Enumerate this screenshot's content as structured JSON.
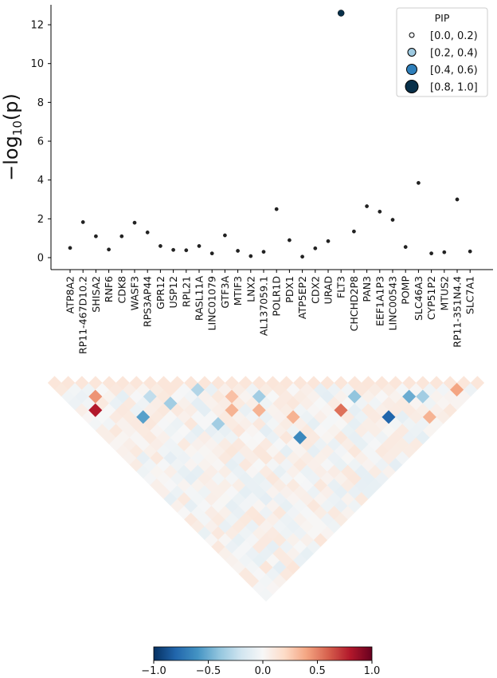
{
  "chart_data": [
    {
      "type": "scatter",
      "ylabel": "−log₁₀(p)",
      "ylim": [
        -0.6,
        13.0
      ],
      "yticks": [
        0,
        2,
        4,
        6,
        8,
        10,
        12
      ],
      "genes": [
        "ATP8A2",
        "RP11-467D10.2",
        "SHISA2",
        "RNF6",
        "CDK8",
        "WASF3",
        "RPS3AP44",
        "GPR12",
        "USP12",
        "RPL21",
        "RASL11A",
        "LINC01079",
        "GTF3A",
        "MTIF3",
        "LNX2",
        "AL137059.1",
        "POLR1D",
        "PDX1",
        "ATP5EP2",
        "CDX2",
        "URAD",
        "FLT3",
        "CHCHD2P8",
        "PAN3",
        "EEF1A1P3",
        "LINC00543",
        "POMP",
        "SLC46A3",
        "CYP51P2",
        "MTUS2",
        "RP11-351N4.4",
        "SLC7A1"
      ],
      "values": [
        0.5,
        1.83,
        1.1,
        0.42,
        1.1,
        1.8,
        1.3,
        0.6,
        0.4,
        0.38,
        0.6,
        0.22,
        1.15,
        0.35,
        0.08,
        0.3,
        2.5,
        0.9,
        0.05,
        0.48,
        0.85,
        12.6,
        1.35,
        2.65,
        2.37,
        1.95,
        0.55,
        3.85,
        0.22,
        0.28,
        3.0,
        0.32
      ],
      "pip_bins": [
        0,
        0,
        0,
        0,
        0,
        0,
        0,
        0,
        0,
        0,
        0,
        0,
        0,
        0,
        0,
        0,
        0,
        0,
        0,
        0,
        0,
        3,
        0,
        0,
        0,
        0,
        0,
        0,
        0,
        0,
        0,
        0
      ],
      "legend": {
        "title": "PIP",
        "placement": "top-right",
        "entries": [
          {
            "label": "[0.0, 0.2)",
            "color": "#f7fbff"
          },
          {
            "label": "[0.2, 0.4)",
            "color": "#9ecae1"
          },
          {
            "label": "[0.4, 0.6)",
            "color": "#2f7fba"
          },
          {
            "label": "[0.8, 1.0]",
            "color": "#08304a"
          }
        ]
      }
    },
    {
      "type": "heatmap",
      "shape": "lower-triangle LD matrix",
      "size": 32,
      "colormap": "RdBu_r",
      "clim": [
        -1.0,
        1.0
      ],
      "colorbar_ticks": [
        "−1.0",
        "−0.5",
        "0.0",
        "0.5",
        "1.0"
      ],
      "colorbar_values": [
        -1.0,
        -0.5,
        0.0,
        0.5,
        1.0
      ],
      "highlighted_cells": [
        {
          "i": 4,
          "j": 9,
          "r": -0.55
        },
        {
          "i": 2,
          "j": 4,
          "r": 0.45
        },
        {
          "i": 1,
          "j": 5,
          "r": 0.8
        },
        {
          "i": 7,
          "j": 10,
          "r": -0.35
        },
        {
          "i": 12,
          "j": 14,
          "r": 0.3
        },
        {
          "i": 11,
          "j": 15,
          "r": 0.35
        },
        {
          "i": 14,
          "j": 22,
          "r": -0.65
        },
        {
          "i": 25,
          "j": 27,
          "r": -0.5
        },
        {
          "i": 29,
          "j": 30,
          "r": 0.4
        },
        {
          "i": 14,
          "j": 16,
          "r": -0.35
        },
        {
          "i": 21,
          "j": 23,
          "r": -0.4
        },
        {
          "i": 15,
          "j": 20,
          "r": 0.35
        },
        {
          "i": 19,
          "j": 23,
          "r": 0.55
        },
        {
          "i": 22,
          "j": 27,
          "r": -0.8
        },
        {
          "i": 26,
          "j": 28,
          "r": -0.35
        },
        {
          "i": 25,
          "j": 30,
          "r": 0.35
        },
        {
          "i": 10,
          "j": 11,
          "r": -0.3
        },
        {
          "i": 9,
          "j": 15,
          "r": -0.35
        },
        {
          "i": 13,
          "j": 17,
          "r": 0.35
        },
        {
          "i": 6,
          "j": 8,
          "r": -0.25
        }
      ]
    }
  ]
}
